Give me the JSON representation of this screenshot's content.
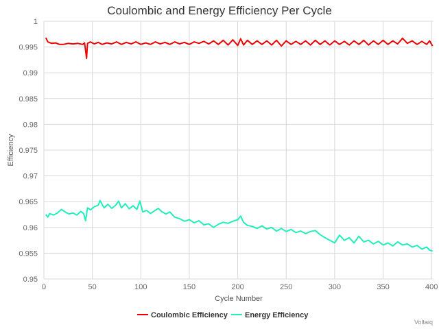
{
  "chart_data": {
    "type": "line",
    "title": "Coulombic and Energy Efficiency Per Cycle",
    "xlabel": "Cycle Number",
    "ylabel": "Efficiency",
    "xlim": [
      0,
      402
    ],
    "ylim": [
      0.95,
      1.0
    ],
    "xticks": [
      "0",
      "50",
      "100",
      "150",
      "200",
      "250",
      "300",
      "350",
      "400"
    ],
    "yticks": [
      "0.95",
      "0.955",
      "0.96",
      "0.965",
      "0.97",
      "0.975",
      "0.98",
      "0.985",
      "0.99",
      "0.995",
      "1"
    ],
    "grid": true,
    "legend_position": "bottom-center",
    "credit": "Voltaiq",
    "series": [
      {
        "name": "Coulombic Efficiency",
        "color": "#ee0000",
        "points": [
          [
            2,
            0.9968
          ],
          [
            4,
            0.996
          ],
          [
            8,
            0.9957
          ],
          [
            12,
            0.9958
          ],
          [
            16,
            0.9955
          ],
          [
            20,
            0.9955
          ],
          [
            25,
            0.9957
          ],
          [
            30,
            0.9956
          ],
          [
            35,
            0.9957
          ],
          [
            40,
            0.9955
          ],
          [
            42,
            0.9958
          ],
          [
            44,
            0.9928
          ],
          [
            45,
            0.9957
          ],
          [
            48,
            0.996
          ],
          [
            52,
            0.9956
          ],
          [
            56,
            0.9959
          ],
          [
            60,
            0.9955
          ],
          [
            65,
            0.9958
          ],
          [
            70,
            0.9956
          ],
          [
            75,
            0.996
          ],
          [
            80,
            0.9955
          ],
          [
            85,
            0.9959
          ],
          [
            90,
            0.9956
          ],
          [
            95,
            0.996
          ],
          [
            100,
            0.9955
          ],
          [
            105,
            0.9958
          ],
          [
            110,
            0.9955
          ],
          [
            115,
            0.996
          ],
          [
            120,
            0.9956
          ],
          [
            125,
            0.9959
          ],
          [
            130,
            0.9955
          ],
          [
            135,
            0.996
          ],
          [
            140,
            0.9956
          ],
          [
            145,
            0.9959
          ],
          [
            150,
            0.9955
          ],
          [
            155,
            0.996
          ],
          [
            160,
            0.9957
          ],
          [
            165,
            0.9961
          ],
          [
            170,
            0.9956
          ],
          [
            175,
            0.9962
          ],
          [
            180,
            0.9955
          ],
          [
            185,
            0.9963
          ],
          [
            190,
            0.9954
          ],
          [
            195,
            0.9964
          ],
          [
            200,
            0.9953
          ],
          [
            203,
            0.9966
          ],
          [
            206,
            0.9954
          ],
          [
            210,
            0.9963
          ],
          [
            215,
            0.9955
          ],
          [
            220,
            0.9962
          ],
          [
            225,
            0.9955
          ],
          [
            230,
            0.9962
          ],
          [
            235,
            0.9954
          ],
          [
            240,
            0.9963
          ],
          [
            245,
            0.9952
          ],
          [
            250,
            0.9962
          ],
          [
            255,
            0.9955
          ],
          [
            260,
            0.9961
          ],
          [
            265,
            0.9955
          ],
          [
            270,
            0.9962
          ],
          [
            275,
            0.9954
          ],
          [
            280,
            0.9963
          ],
          [
            285,
            0.9955
          ],
          [
            290,
            0.9962
          ],
          [
            295,
            0.9954
          ],
          [
            300,
            0.9962
          ],
          [
            305,
            0.9955
          ],
          [
            310,
            0.9961
          ],
          [
            315,
            0.9954
          ],
          [
            320,
            0.9962
          ],
          [
            325,
            0.9955
          ],
          [
            330,
            0.9963
          ],
          [
            335,
            0.9954
          ],
          [
            340,
            0.9962
          ],
          [
            345,
            0.9955
          ],
          [
            350,
            0.9963
          ],
          [
            355,
            0.9955
          ],
          [
            360,
            0.9962
          ],
          [
            365,
            0.9956
          ],
          [
            370,
            0.9967
          ],
          [
            375,
            0.9957
          ],
          [
            380,
            0.9962
          ],
          [
            385,
            0.9955
          ],
          [
            390,
            0.9961
          ],
          [
            395,
            0.9955
          ],
          [
            398,
            0.9962
          ],
          [
            401,
            0.9952
          ]
        ]
      },
      {
        "name": "Energy Efficiency",
        "color": "#22eebb",
        "points": [
          [
            2,
            0.9625
          ],
          [
            4,
            0.962
          ],
          [
            6,
            0.9627
          ],
          [
            10,
            0.9624
          ],
          [
            14,
            0.9628
          ],
          [
            18,
            0.9635
          ],
          [
            22,
            0.963
          ],
          [
            26,
            0.9626
          ],
          [
            30,
            0.9628
          ],
          [
            34,
            0.9624
          ],
          [
            38,
            0.9631
          ],
          [
            41,
            0.9627
          ],
          [
            43,
            0.9613
          ],
          [
            45,
            0.9638
          ],
          [
            48,
            0.9634
          ],
          [
            52,
            0.964
          ],
          [
            56,
            0.9643
          ],
          [
            58,
            0.9652
          ],
          [
            62,
            0.9638
          ],
          [
            66,
            0.9645
          ],
          [
            70,
            0.9637
          ],
          [
            74,
            0.9643
          ],
          [
            77,
            0.9651
          ],
          [
            80,
            0.9638
          ],
          [
            84,
            0.9646
          ],
          [
            88,
            0.9636
          ],
          [
            92,
            0.9642
          ],
          [
            96,
            0.9635
          ],
          [
            99,
            0.9651
          ],
          [
            102,
            0.963
          ],
          [
            106,
            0.9633
          ],
          [
            110,
            0.9627
          ],
          [
            114,
            0.9632
          ],
          [
            118,
            0.9637
          ],
          [
            122,
            0.963
          ],
          [
            126,
            0.9626
          ],
          [
            130,
            0.963
          ],
          [
            135,
            0.962
          ],
          [
            140,
            0.9617
          ],
          [
            145,
            0.9612
          ],
          [
            150,
            0.9615
          ],
          [
            155,
            0.9609
          ],
          [
            160,
            0.9613
          ],
          [
            165,
            0.9605
          ],
          [
            170,
            0.9607
          ],
          [
            175,
            0.96
          ],
          [
            180,
            0.9606
          ],
          [
            185,
            0.961
          ],
          [
            190,
            0.9608
          ],
          [
            195,
            0.9612
          ],
          [
            200,
            0.9615
          ],
          [
            203,
            0.9622
          ],
          [
            206,
            0.961
          ],
          [
            210,
            0.9604
          ],
          [
            215,
            0.9602
          ],
          [
            220,
            0.9598
          ],
          [
            225,
            0.9603
          ],
          [
            230,
            0.9597
          ],
          [
            235,
            0.96
          ],
          [
            240,
            0.9593
          ],
          [
            245,
            0.9598
          ],
          [
            250,
            0.9592
          ],
          [
            255,
            0.9596
          ],
          [
            260,
            0.959
          ],
          [
            265,
            0.9593
          ],
          [
            270,
            0.9588
          ],
          [
            275,
            0.9592
          ],
          [
            280,
            0.9594
          ],
          [
            285,
            0.9586
          ],
          [
            290,
            0.958
          ],
          [
            295,
            0.9575
          ],
          [
            300,
            0.957
          ],
          [
            305,
            0.9585
          ],
          [
            310,
            0.9575
          ],
          [
            315,
            0.958
          ],
          [
            320,
            0.957
          ],
          [
            325,
            0.9583
          ],
          [
            330,
            0.9572
          ],
          [
            335,
            0.9575
          ],
          [
            340,
            0.9568
          ],
          [
            345,
            0.9573
          ],
          [
            350,
            0.9566
          ],
          [
            355,
            0.957
          ],
          [
            360,
            0.9564
          ],
          [
            365,
            0.9572
          ],
          [
            370,
            0.9566
          ],
          [
            375,
            0.9568
          ],
          [
            380,
            0.9562
          ],
          [
            385,
            0.9565
          ],
          [
            390,
            0.9558
          ],
          [
            395,
            0.9562
          ],
          [
            398,
            0.9556
          ],
          [
            401,
            0.9554
          ]
        ]
      }
    ]
  }
}
